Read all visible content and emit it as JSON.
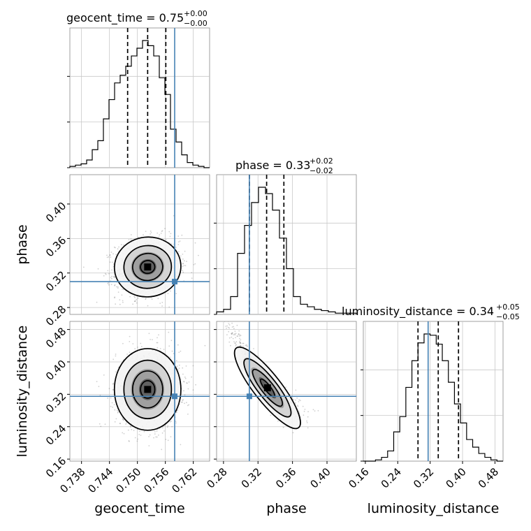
{
  "chart_data": {
    "type": "corner",
    "parameters": [
      "geocent_time",
      "phase",
      "luminosity_distance"
    ],
    "truths": {
      "geocent_time": 0.758,
      "phase": 0.31,
      "luminosity_distance": 0.315
    },
    "ranges": {
      "geocent_time": [
        0.7355,
        0.7655
      ],
      "phase": [
        0.272,
        0.434
      ],
      "luminosity_distance": [
        0.155,
        0.5
      ]
    },
    "ticks": {
      "geocent_time": [
        0.738,
        0.744,
        0.75,
        0.756,
        0.762
      ],
      "phase": [
        0.28,
        0.32,
        0.36,
        0.4
      ],
      "luminosity_distance": [
        0.16,
        0.24,
        0.32,
        0.4,
        0.48
      ]
    },
    "tick_labels": {
      "geocent_time": [
        "0.738",
        "0.744",
        "0.750",
        "0.756",
        "0.762"
      ],
      "phase": [
        "0.28",
        "0.32",
        "0.36",
        "0.40"
      ],
      "luminosity_distance": [
        "0.16",
        "0.24",
        "0.32",
        "0.40",
        "0.48"
      ]
    },
    "quantiles": {
      "geocent_time": [
        0.7479,
        0.7522,
        0.7561
      ],
      "phase": [
        0.31,
        0.33,
        0.35
      ],
      "luminosity_distance": [
        0.29,
        0.34,
        0.39
      ]
    },
    "titles": {
      "geocent_time": {
        "main": "geocent_time = 0.75",
        "plus": "+0.00",
        "minus": "−0.00"
      },
      "phase": {
        "main": "phase = 0.33",
        "plus": "+0.02",
        "minus": "−0.02"
      },
      "luminosity_distance": {
        "main": "luminosity_distance = 0.34",
        "plus": "+0.05",
        "minus": "−0.05"
      }
    },
    "histograms": {
      "geocent_time": [
        1,
        2,
        3,
        6,
        14,
        21,
        38,
        53,
        66,
        72,
        79,
        87,
        93,
        99,
        95,
        87,
        70,
        57,
        30,
        20,
        10,
        4,
        2,
        1,
        0
      ],
      "phase": [
        2,
        4,
        14,
        48,
        70,
        88,
        100,
        95,
        82,
        60,
        36,
        14,
        8,
        6,
        4,
        3,
        2,
        1,
        1,
        1
      ],
      "luminosity_distance": [
        0,
        0,
        1,
        3,
        8,
        23,
        35,
        58,
        79,
        93,
        100,
        99,
        92,
        79,
        62,
        45,
        30,
        17,
        11,
        6,
        3,
        1,
        0
      ]
    },
    "colors": {
      "truth": "#4682b4",
      "hist": "#000000",
      "points": "#555555"
    },
    "grid": true
  }
}
